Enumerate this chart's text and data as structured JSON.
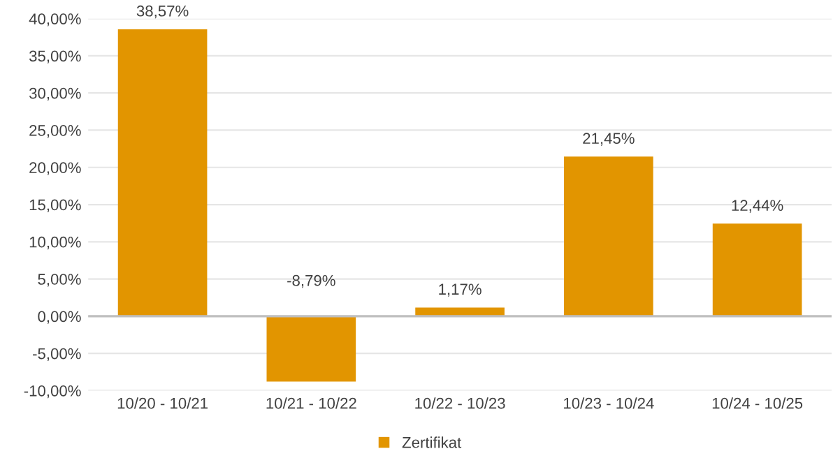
{
  "chart_data": {
    "type": "bar",
    "categories": [
      "10/20 - 10/21",
      "10/21 - 10/22",
      "10/22 - 10/23",
      "10/23 - 10/24",
      "10/24 - 10/25"
    ],
    "series": [
      {
        "name": "Zertifikat",
        "color": "#e29500",
        "values": [
          38.57,
          -8.79,
          1.17,
          21.45,
          12.44
        ],
        "value_labels": [
          "38,57%",
          "-8,79%",
          "1,17%",
          "21,45%",
          "12,44%"
        ]
      }
    ],
    "ylim": [
      -10,
      40
    ],
    "yticks": [
      {
        "value": -10,
        "label": "-10,00%"
      },
      {
        "value": -5,
        "label": "-5,00%"
      },
      {
        "value": 0,
        "label": "0,00%"
      },
      {
        "value": 5,
        "label": "5,00%"
      },
      {
        "value": 10,
        "label": "10,00%"
      },
      {
        "value": 15,
        "label": "15,00%"
      },
      {
        "value": 20,
        "label": "20,00%"
      },
      {
        "value": 25,
        "label": "25,00%"
      },
      {
        "value": 30,
        "label": "30,00%"
      },
      {
        "value": 35,
        "label": "35,00%"
      },
      {
        "value": 40,
        "label": "40,00%"
      }
    ],
    "grid": "y",
    "legend": "bottom"
  }
}
